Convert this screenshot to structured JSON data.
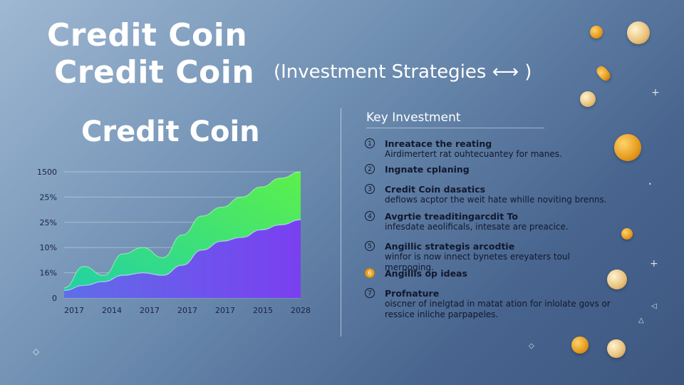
{
  "header": {
    "title_line1": "Credit Coin",
    "title_line2": "Credit Coin",
    "subtitle": "(Investment Strategies ⟷ )"
  },
  "chart_data": {
    "type": "area",
    "title": "Credit Coin",
    "y_tick_labels": [
      "1500",
      "25%",
      "25%",
      "10%",
      "16%",
      "0"
    ],
    "x_tick_labels": [
      "2017",
      "2014",
      "2017",
      "2017",
      "2017",
      "2015",
      "2028"
    ],
    "x": [
      0,
      0.5,
      1,
      1.5,
      2,
      2.5,
      3,
      3.5,
      4,
      4.5,
      5,
      5.5,
      6
    ],
    "series": [
      {
        "values": [
          0.08,
          0.25,
          0.18,
          0.35,
          0.4,
          0.32,
          0.5,
          0.65,
          0.72,
          0.8,
          0.88,
          0.95,
          1.0
        ],
        "color": "#3ee07a"
      },
      {
        "values": [
          0.06,
          0.1,
          0.13,
          0.18,
          0.2,
          0.18,
          0.26,
          0.38,
          0.45,
          0.48,
          0.54,
          0.58,
          0.62
        ],
        "color": "#7a4ef2"
      }
    ],
    "ylim": [
      0,
      1
    ],
    "grid": true,
    "legend": "none"
  },
  "panel": {
    "heading": "Key Investment",
    "items": [
      {
        "num": "1",
        "title": "Inreatace the reating",
        "desc": "Airdimertert rat ouhtecuantey for manes."
      },
      {
        "num": "2",
        "title": "Ingnate cplaning",
        "desc": ""
      },
      {
        "num": "3",
        "title": "Credit Coin dasatics",
        "desc": "defiows acptor the weit hate whille noviting brenns."
      },
      {
        "num": "4",
        "title": "Avgrtie treaditingarcdit To",
        "desc": "infesdate aeolificals, intesate are preacice."
      },
      {
        "num": "5",
        "title": "Angillic strategis arcodtie",
        "desc": "winfor is now innect bynetes ereyaters toul merpoging."
      },
      {
        "num": "6",
        "title": "Angillis op ideas",
        "desc": ""
      },
      {
        "num": "7",
        "title": "Profnature",
        "desc": "oiscner of inelgtad in matat ation for inlolate govs or ressice inliche parpapeles."
      }
    ]
  },
  "colors": {
    "accent_gold": "#e8a326",
    "area_green": "#3ee07a",
    "area_purple": "#7a4ef2"
  },
  "icons": [
    "coin-icon",
    "lightbulb-icon",
    "rocket-icon",
    "sparkle-icon"
  ]
}
